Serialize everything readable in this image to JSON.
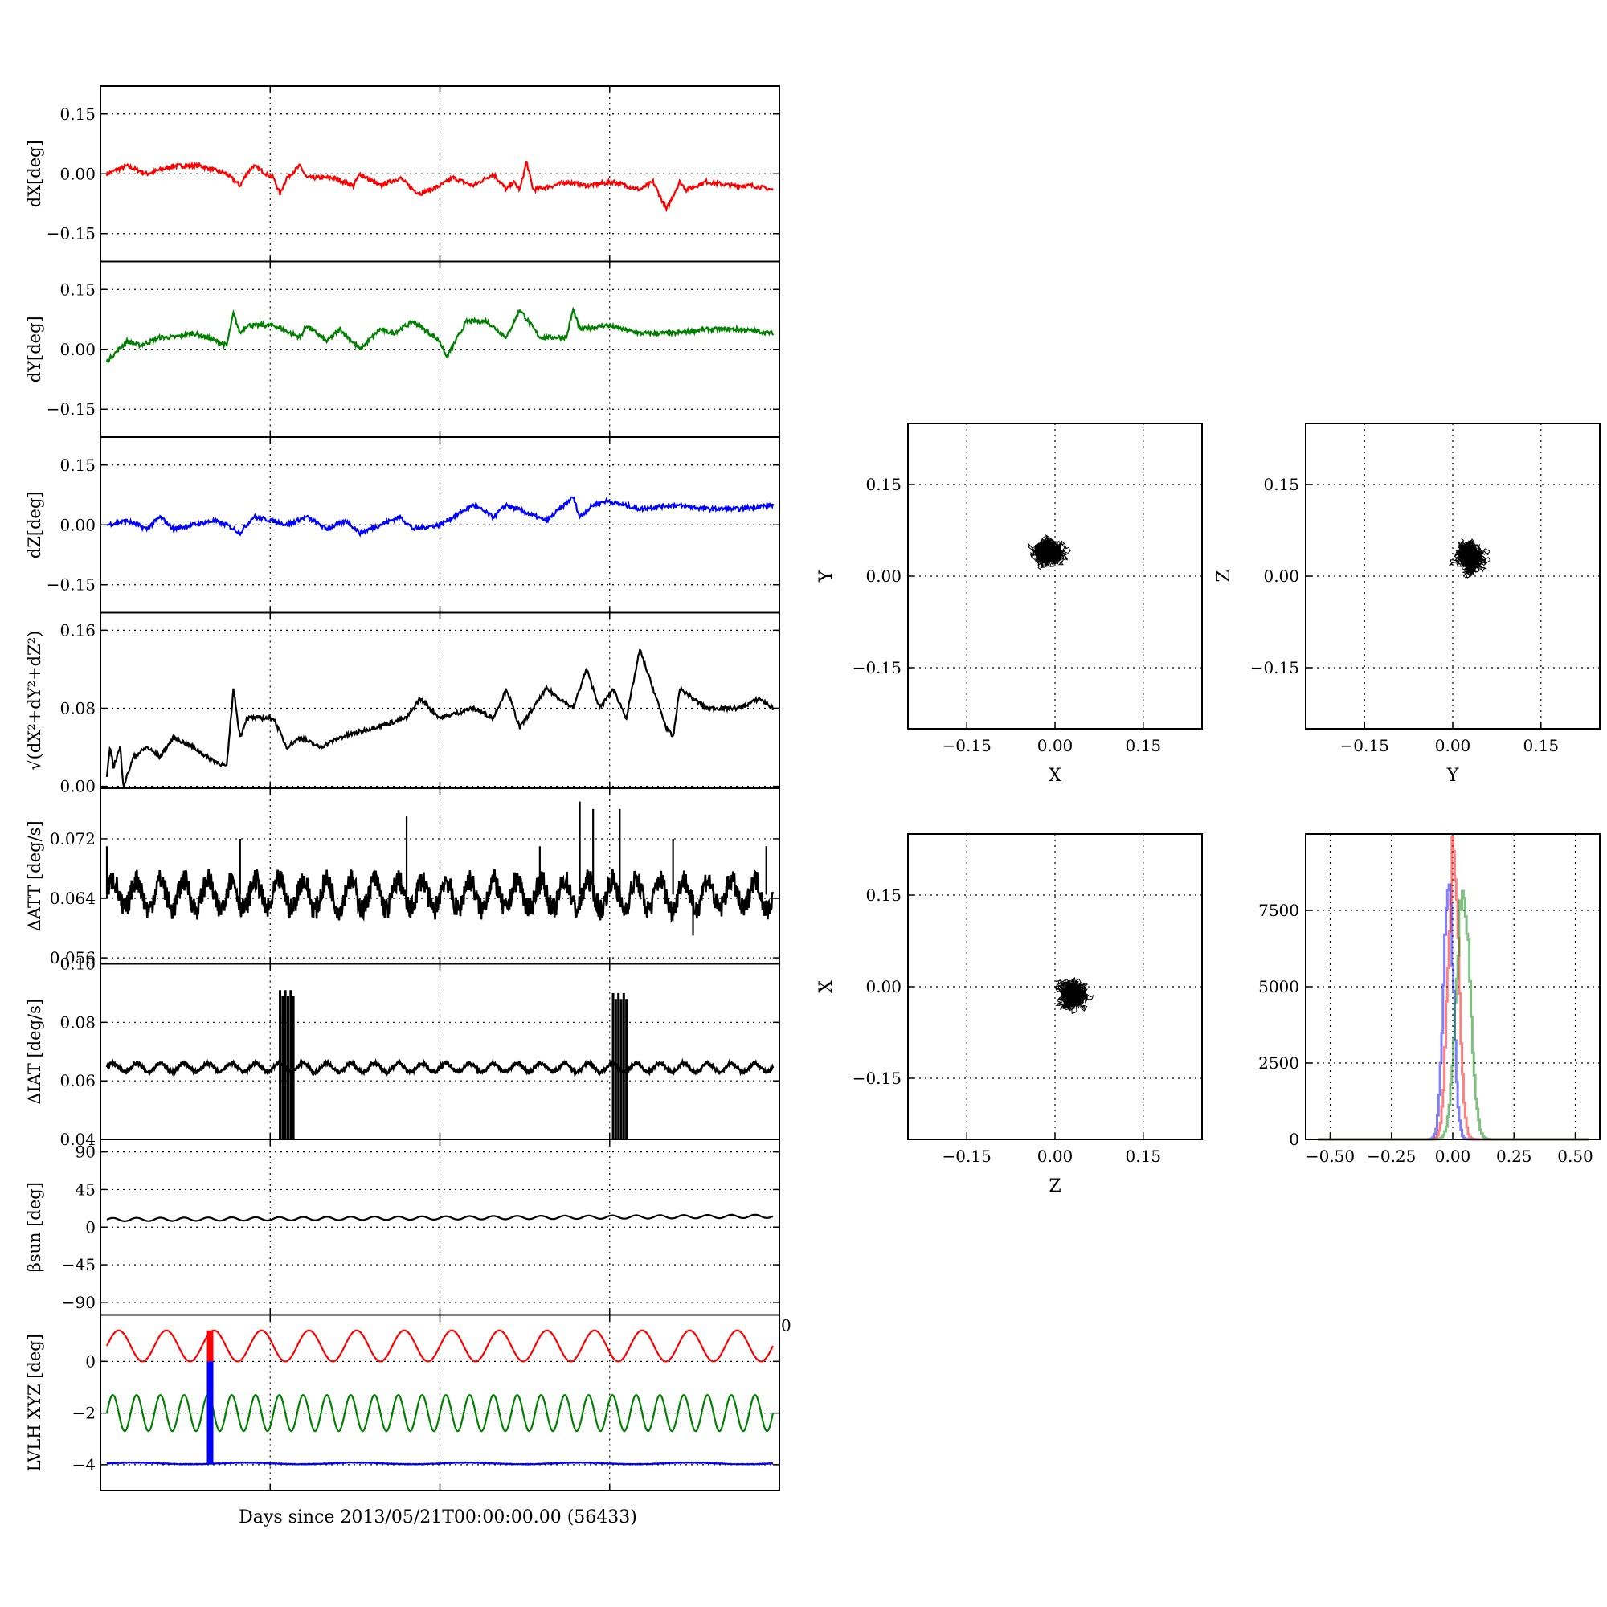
{
  "figure": {
    "xlabel": "Days since 2013/05/21T00:00:00.00 (56433)"
  },
  "chart_data": [
    {
      "id": "dx",
      "type": "line",
      "ylabel": "dX[deg]",
      "ylim": [
        -0.22,
        0.22
      ],
      "yticks": [
        -0.15,
        0.0,
        0.15
      ],
      "ytick_labels": [
        "−0.15",
        "0.00",
        "0.15"
      ],
      "grid": true,
      "series": [
        {
          "color": "#ff0000",
          "x": [
            0,
            0.03,
            0.06,
            0.1,
            0.14,
            0.18,
            0.2,
            0.21,
            0.22,
            0.25,
            0.26,
            0.27,
            0.29,
            0.3,
            0.34,
            0.37,
            0.38,
            0.41,
            0.44,
            0.46,
            0.47,
            0.5,
            0.52,
            0.55,
            0.58,
            0.6,
            0.61,
            0.62,
            0.63,
            0.64,
            0.67,
            0.69,
            0.72,
            0.76,
            0.8,
            0.82,
            0.84,
            0.86,
            0.87,
            0.9,
            0.94,
            0.97,
            1.0
          ],
          "y": [
            0.0,
            0.02,
            0.0,
            0.02,
            0.02,
            0.0,
            -0.03,
            0.0,
            0.02,
            -0.01,
            -0.05,
            -0.01,
            0.02,
            -0.01,
            -0.01,
            -0.03,
            0.0,
            -0.03,
            -0.01,
            -0.04,
            -0.05,
            -0.03,
            -0.01,
            -0.03,
            0.0,
            -0.04,
            -0.02,
            -0.04,
            0.03,
            -0.04,
            -0.03,
            -0.02,
            -0.03,
            -0.02,
            -0.04,
            -0.02,
            -0.09,
            -0.02,
            -0.04,
            -0.02,
            -0.03,
            -0.03,
            -0.04
          ]
        }
      ]
    },
    {
      "id": "dy",
      "type": "line",
      "ylabel": "dY[deg]",
      "ylim": [
        -0.22,
        0.22
      ],
      "yticks": [
        -0.15,
        0.0,
        0.15
      ],
      "ytick_labels": [
        "−0.15",
        "0.00",
        "0.15"
      ],
      "grid": true,
      "series": [
        {
          "color": "#008000",
          "x": [
            0,
            0.03,
            0.05,
            0.08,
            0.1,
            0.13,
            0.15,
            0.18,
            0.19,
            0.2,
            0.21,
            0.25,
            0.29,
            0.3,
            0.33,
            0.35,
            0.38,
            0.41,
            0.43,
            0.46,
            0.5,
            0.51,
            0.54,
            0.57,
            0.6,
            0.62,
            0.65,
            0.69,
            0.7,
            0.71,
            0.75,
            0.8,
            0.85,
            0.9,
            0.95,
            1.0
          ],
          "y": [
            -0.03,
            0.02,
            0.01,
            0.03,
            0.03,
            0.04,
            0.03,
            0.01,
            0.09,
            0.04,
            0.06,
            0.06,
            0.03,
            0.06,
            0.02,
            0.05,
            0.0,
            0.05,
            0.04,
            0.07,
            0.02,
            -0.02,
            0.07,
            0.07,
            0.03,
            0.1,
            0.03,
            0.03,
            0.1,
            0.05,
            0.06,
            0.04,
            0.04,
            0.05,
            0.05,
            0.04
          ]
        }
      ]
    },
    {
      "id": "dz",
      "type": "line",
      "ylabel": "dZ[deg]",
      "ylim": [
        -0.22,
        0.22
      ],
      "yticks": [
        -0.15,
        0.0,
        0.15
      ],
      "ytick_labels": [
        "−0.15",
        "0.00",
        "0.15"
      ],
      "grid": true,
      "series": [
        {
          "color": "#0000ff",
          "x": [
            0,
            0.03,
            0.06,
            0.08,
            0.1,
            0.13,
            0.16,
            0.18,
            0.2,
            0.22,
            0.25,
            0.27,
            0.3,
            0.33,
            0.36,
            0.38,
            0.41,
            0.44,
            0.46,
            0.5,
            0.55,
            0.58,
            0.6,
            0.66,
            0.7,
            0.71,
            0.73,
            0.75,
            0.8,
            0.85,
            0.9,
            0.95,
            1.0
          ],
          "y": [
            0.0,
            0.01,
            -0.01,
            0.02,
            -0.01,
            0.0,
            0.01,
            0.0,
            -0.02,
            0.02,
            0.01,
            0.0,
            0.02,
            -0.01,
            0.01,
            -0.02,
            0.0,
            0.02,
            -0.01,
            0.0,
            0.05,
            0.02,
            0.05,
            0.01,
            0.07,
            0.02,
            0.05,
            0.06,
            0.04,
            0.05,
            0.04,
            0.04,
            0.05
          ]
        }
      ]
    },
    {
      "id": "dr",
      "type": "line",
      "ylabel": "√(dX²+dY²+dZ²)",
      "ylim": [
        -0.002,
        0.178
      ],
      "yticks": [
        0.0,
        0.08,
        0.16
      ],
      "ytick_labels": [
        "0.00",
        "0.08",
        "0.16"
      ],
      "grid": true,
      "series": [
        {
          "color": "#000000",
          "x": [
            0,
            0.005,
            0.01,
            0.02,
            0.025,
            0.04,
            0.06,
            0.08,
            0.1,
            0.13,
            0.15,
            0.18,
            0.19,
            0.2,
            0.21,
            0.25,
            0.27,
            0.29,
            0.32,
            0.35,
            0.4,
            0.45,
            0.47,
            0.5,
            0.55,
            0.58,
            0.6,
            0.62,
            0.66,
            0.7,
            0.72,
            0.74,
            0.76,
            0.78,
            0.8,
            0.84,
            0.85,
            0.86,
            0.9,
            0.95,
            0.98,
            1.0
          ],
          "y": [
            0.01,
            0.04,
            0.02,
            0.04,
            0.0,
            0.03,
            0.04,
            0.03,
            0.05,
            0.04,
            0.03,
            0.02,
            0.1,
            0.05,
            0.07,
            0.07,
            0.04,
            0.05,
            0.04,
            0.05,
            0.06,
            0.07,
            0.09,
            0.07,
            0.08,
            0.07,
            0.1,
            0.06,
            0.1,
            0.08,
            0.12,
            0.08,
            0.1,
            0.07,
            0.14,
            0.06,
            0.05,
            0.1,
            0.08,
            0.08,
            0.09,
            0.08
          ]
        }
      ]
    },
    {
      "id": "datt",
      "type": "line",
      "ylabel": "ΔATT [deg/s]",
      "ylim": [
        0.0552,
        0.0788
      ],
      "yticks": [
        0.056,
        0.064,
        0.072
      ],
      "ytick_labels": [
        "0.056",
        "0.064",
        "0.072"
      ],
      "grid": true,
      "series": [
        {
          "color": "#000000",
          "baseline": 0.0645,
          "amplitude": 0.002,
          "cycles": 28,
          "spikes": [
            {
              "x": 0.0,
              "y": 0.071
            },
            {
              "x": 0.2,
              "y": 0.072
            },
            {
              "x": 0.45,
              "y": 0.075
            },
            {
              "x": 0.65,
              "y": 0.071
            },
            {
              "x": 0.71,
              "y": 0.077
            },
            {
              "x": 0.73,
              "y": 0.076
            },
            {
              "x": 0.77,
              "y": 0.076
            },
            {
              "x": 0.85,
              "y": 0.072
            },
            {
              "x": 0.99,
              "y": 0.071
            }
          ],
          "dips": [
            {
              "x": 0.88,
              "y": 0.059
            }
          ]
        }
      ]
    },
    {
      "id": "diat",
      "type": "line",
      "ylabel": "ΔIAT [deg/s]",
      "ylim": [
        0.04,
        0.1
      ],
      "yticks": [
        0.04,
        0.06,
        0.08,
        0.1
      ],
      "ytick_labels": [
        "0.04",
        "0.06",
        "0.08",
        "0.10"
      ],
      "grid": true,
      "series": [
        {
          "color": "#000000",
          "baseline": 0.0645,
          "amplitude": 0.0015,
          "cycles": 28,
          "bursts": [
            {
              "x0": 0.26,
              "x1": 0.28,
              "ymin": 0.04,
              "ymax": 0.091
            },
            {
              "x0": 0.76,
              "x1": 0.78,
              "ymin": 0.04,
              "ymax": 0.09
            }
          ]
        }
      ]
    },
    {
      "id": "beta",
      "type": "line",
      "ylabel": "βsun [deg]",
      "ylim": [
        -105,
        105
      ],
      "yticks": [
        -90,
        -45,
        0,
        45,
        90
      ],
      "ytick_labels": [
        "−90",
        "−45",
        "0",
        "45",
        "90"
      ],
      "grid": true,
      "series": [
        {
          "color": "#000000",
          "baseline": 9,
          "amplitude": 2,
          "cycles": 28,
          "trend": 4
        }
      ]
    },
    {
      "id": "lvlh",
      "type": "line",
      "ylabel": "LVLH XYZ [deg]",
      "ylim": [
        -5,
        1.8
      ],
      "yticks": [
        -4,
        -2,
        0
      ],
      "ytick_labels": [
        "−4",
        "−2",
        "0"
      ],
      "xlim": [
        0,
        1
      ],
      "xtick_labels": [
        "0"
      ],
      "grid": true,
      "series": [
        {
          "color": "#ff0000",
          "baseline": 0.6,
          "amplitude": 0.6,
          "cycles": 14
        },
        {
          "color": "#008000",
          "baseline": -2.0,
          "amplitude": 0.7,
          "cycles": 28
        },
        {
          "color": "#0000ff",
          "baseline": -3.95,
          "amplitude": 0.03,
          "cycles": 6
        }
      ],
      "markers": [
        {
          "x": 0.155,
          "y0": 0.0,
          "y1": 1.2,
          "color": "#ff0000"
        },
        {
          "x": 0.155,
          "y0": -3.95,
          "y1": 0.0,
          "color": "#0000ff"
        }
      ]
    },
    {
      "id": "xy",
      "type": "scatter",
      "xlabel": "X",
      "ylabel": "Y",
      "xlim": [
        -0.25,
        0.25
      ],
      "ylim": [
        -0.25,
        0.25
      ],
      "ticks": [
        -0.15,
        0.0,
        0.15
      ],
      "tick_labels": [
        "−0.15",
        "0.00",
        "0.15"
      ],
      "grid": true,
      "cluster": {
        "cx": -0.01,
        "cy": 0.04,
        "rx": 0.03,
        "ry": 0.04,
        "color": "#000000"
      }
    },
    {
      "id": "yz",
      "type": "scatter",
      "xlabel": "Y",
      "ylabel": "Z",
      "xlim": [
        -0.25,
        0.25
      ],
      "ylim": [
        -0.25,
        0.25
      ],
      "ticks": [
        -0.15,
        0.0,
        0.15
      ],
      "tick_labels": [
        "−0.15",
        "0.00",
        "0.15"
      ],
      "grid": true,
      "cluster": {
        "cx": 0.03,
        "cy": 0.03,
        "rx": 0.045,
        "ry": 0.03,
        "color": "#000000"
      }
    },
    {
      "id": "zx",
      "type": "scatter",
      "xlabel": "Z",
      "ylabel": "X",
      "xlim": [
        -0.25,
        0.25
      ],
      "ylim": [
        -0.25,
        0.25
      ],
      "ticks": [
        -0.15,
        0.0,
        0.15
      ],
      "tick_labels": [
        "−0.15",
        "0.00",
        "0.15"
      ],
      "grid": true,
      "cluster": {
        "cx": 0.03,
        "cy": -0.01,
        "rx": 0.035,
        "ry": 0.035,
        "color": "#000000"
      }
    },
    {
      "id": "hist",
      "type": "line",
      "xlim": [
        -0.6,
        0.6
      ],
      "ylim": [
        0,
        10000
      ],
      "xticks": [
        -0.5,
        -0.25,
        0.0,
        0.25,
        0.5
      ],
      "xtick_labels": [
        "−0.50",
        "−0.25",
        "0.00",
        "0.25",
        "0.50"
      ],
      "yticks": [
        0,
        2500,
        5000,
        7500
      ],
      "ytick_labels": [
        "0",
        "2500",
        "5000",
        "7500"
      ],
      "grid": true,
      "series": [
        {
          "color": "#0000ff",
          "mean": -0.02,
          "sigma": 0.02,
          "peak": 8500
        },
        {
          "color": "#ff0000",
          "mean": 0.0,
          "sigma": 0.022,
          "peak": 9300
        },
        {
          "color": "#008000",
          "mean": 0.04,
          "sigma": 0.028,
          "peak": 8100
        }
      ]
    }
  ]
}
